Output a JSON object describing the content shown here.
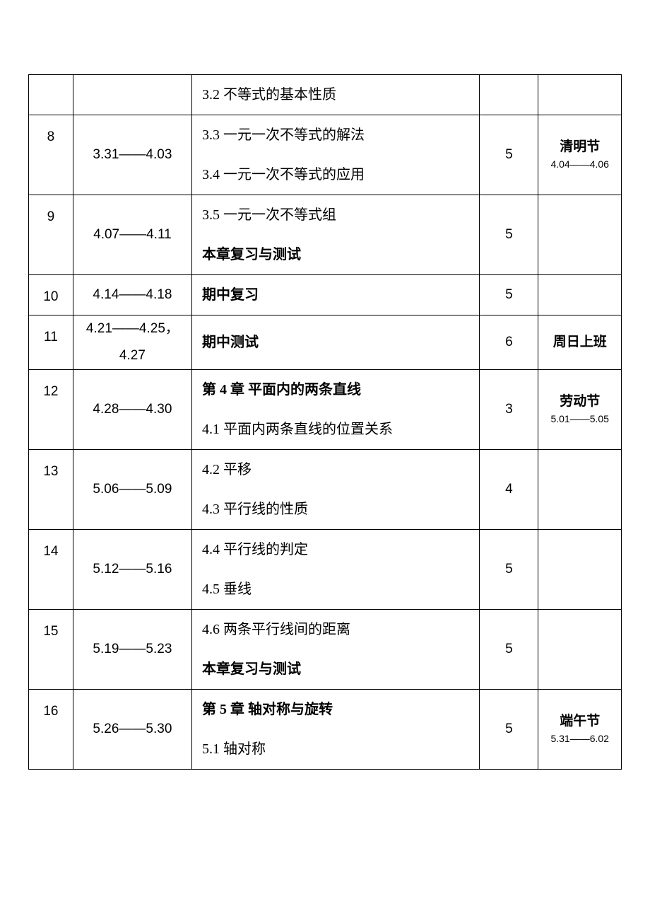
{
  "rows": [
    {
      "week": "",
      "date": "",
      "contents": [
        {
          "text": "3.2 不等式的基本性质",
          "bold": false
        }
      ],
      "hours": "",
      "note_main": "",
      "note_sub": ""
    },
    {
      "week": "8",
      "date": "3.31——4.03",
      "contents": [
        {
          "text": "3.3 一元一次不等式的解法",
          "bold": false
        },
        {
          "text": "3.4 一元一次不等式的应用",
          "bold": false
        }
      ],
      "hours": "5",
      "note_main": "清明节",
      "note_sub": "4.04——4.06"
    },
    {
      "week": "9",
      "date": "4.07——4.11",
      "contents": [
        {
          "text": "3.5 一元一次不等式组",
          "bold": false
        },
        {
          "text": "本章复习与测试",
          "bold": true
        }
      ],
      "hours": "5",
      "note_main": "",
      "note_sub": ""
    },
    {
      "week": "10",
      "date": "4.14——4.18",
      "contents": [
        {
          "text": "期中复习",
          "bold": true
        }
      ],
      "hours": "5",
      "note_main": "",
      "note_sub": ""
    },
    {
      "week": "11",
      "date": "4.21——4.25，4.27",
      "date_multiline": true,
      "contents": [
        {
          "text": "期中测试",
          "bold": true
        }
      ],
      "hours": "6",
      "note_main": "周日上班",
      "note_sub": ""
    },
    {
      "week": "12",
      "date": "4.28——4.30",
      "contents": [
        {
          "text": "第 4 章 平面内的两条直线",
          "bold": true
        },
        {
          "text": "4.1 平面内两条直线的位置关系",
          "bold": false
        }
      ],
      "hours": "3",
      "note_main": "劳动节",
      "note_sub": "5.01——5.05"
    },
    {
      "week": "13",
      "date": "5.06——5.09",
      "contents": [
        {
          "text": "4.2 平移",
          "bold": false
        },
        {
          "text": "4.3 平行线的性质",
          "bold": false
        }
      ],
      "hours": "4",
      "note_main": "",
      "note_sub": ""
    },
    {
      "week": "14",
      "date": "5.12——5.16",
      "contents": [
        {
          "text": "4.4 平行线的判定",
          "bold": false
        },
        {
          "text": "4.5 垂线",
          "bold": false
        }
      ],
      "hours": "5",
      "note_main": "",
      "note_sub": ""
    },
    {
      "week": "15",
      "date": "5.19——5.23",
      "contents": [
        {
          "text": "4.6 两条平行线间的距离",
          "bold": false
        },
        {
          "text": "本章复习与测试",
          "bold": true
        }
      ],
      "hours": "5",
      "note_main": "",
      "note_sub": ""
    },
    {
      "week": "16",
      "date": "5.26——5.30",
      "contents": [
        {
          "text": "第 5 章 轴对称与旋转",
          "bold": true
        },
        {
          "text": "5.1 轴对称",
          "bold": false
        }
      ],
      "hours": "5",
      "note_main": "端午节",
      "note_sub": "5.31——6.02"
    }
  ]
}
